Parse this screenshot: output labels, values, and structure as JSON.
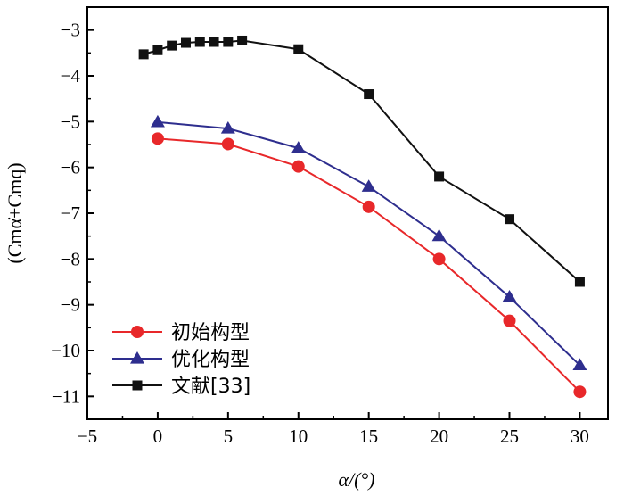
{
  "chart_data": {
    "type": "line",
    "title": "",
    "xlabel": "α/(°)",
    "ylabel": "(Cmα̇+Cmq)",
    "xlim": [
      -5,
      32
    ],
    "ylim": [
      -11.5,
      -2.5
    ],
    "x_ticks": [
      -5,
      0,
      5,
      10,
      15,
      20,
      25,
      30
    ],
    "y_ticks": [
      -3,
      -4,
      -5,
      -6,
      -7,
      -8,
      -9,
      -10,
      -11
    ],
    "x_tick_labels": [
      "−5",
      "0",
      "5",
      "10",
      "15",
      "20",
      "25",
      "30"
    ],
    "y_tick_labels": [
      "−3",
      "−4",
      "−5",
      "−6",
      "−7",
      "−8",
      "−9",
      "−10",
      "−11"
    ],
    "legend_position": "bottom-left",
    "series": [
      {
        "name": "初始构型",
        "color": "#e8282a",
        "marker": "circle",
        "x": [
          0,
          5,
          10,
          15,
          20,
          25,
          30
        ],
        "values": [
          -5.37,
          -5.49,
          -5.98,
          -6.86,
          -8.0,
          -9.35,
          -10.9
        ]
      },
      {
        "name": "优化构型",
        "color": "#2e2e8e",
        "marker": "triangle",
        "x": [
          0,
          5,
          10,
          15,
          20,
          25,
          30
        ],
        "values": [
          -5.01,
          -5.15,
          -5.58,
          -6.42,
          -7.5,
          -8.83,
          -10.32
        ]
      },
      {
        "name": "文献[33]",
        "color": "#111111",
        "marker": "square",
        "x": [
          -1,
          0,
          1,
          2,
          3,
          4,
          5,
          6,
          10,
          15,
          20,
          25,
          30
        ],
        "values": [
          -3.53,
          -3.44,
          -3.34,
          -3.28,
          -3.26,
          -3.26,
          -3.26,
          -3.23,
          -3.42,
          -4.4,
          -6.2,
          -7.13,
          -8.5
        ]
      }
    ]
  }
}
